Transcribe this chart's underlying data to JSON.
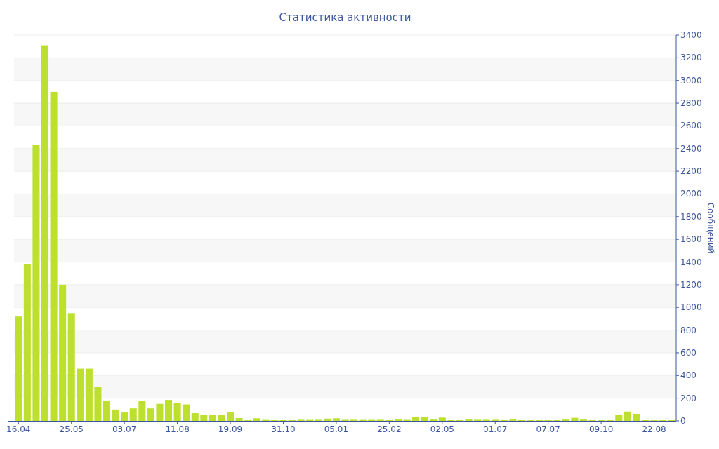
{
  "chart_data": {
    "type": "bar",
    "title": "Статистика активности",
    "ylabel": "Сообщений",
    "categories": [
      "16.04",
      null,
      null,
      null,
      null,
      null,
      "25.05",
      null,
      null,
      null,
      null,
      null,
      "03.07",
      null,
      null,
      null,
      null,
      null,
      "11.08",
      null,
      null,
      null,
      null,
      null,
      "19.09",
      null,
      null,
      null,
      null,
      null,
      "31.10",
      null,
      null,
      null,
      null,
      null,
      "05.01",
      null,
      null,
      null,
      null,
      null,
      "25.02",
      null,
      null,
      null,
      null,
      null,
      "02.05",
      null,
      null,
      null,
      null,
      null,
      "01.07",
      null,
      null,
      null,
      null,
      null,
      "07.07",
      null,
      null,
      null,
      null,
      null,
      "09.10",
      null,
      null,
      null,
      null,
      null,
      "22.08",
      null,
      null
    ],
    "values": [
      920,
      1380,
      2430,
      3310,
      2900,
      1200,
      950,
      460,
      460,
      300,
      180,
      100,
      80,
      110,
      173,
      110,
      150,
      185,
      155,
      145,
      70,
      55,
      55,
      55,
      80,
      25,
      12,
      23,
      15,
      12,
      12,
      10,
      16,
      15,
      16,
      20,
      23,
      16,
      16,
      15,
      15,
      16,
      12,
      18,
      15,
      35,
      37,
      18,
      29,
      12,
      12,
      18,
      16,
      16,
      16,
      12,
      18,
      10,
      6,
      6,
      6,
      12,
      18,
      27,
      18,
      6,
      6,
      6,
      52,
      82,
      62,
      12,
      6,
      6,
      8
    ],
    "color": "#bde02e",
    "ylim": [
      0,
      3400
    ],
    "yticks": [
      0,
      200,
      400,
      600,
      800,
      1000,
      1200,
      1400,
      1600,
      1800,
      2000,
      2200,
      2400,
      2600,
      2800,
      3000,
      3200,
      3400
    ],
    "grid": "y"
  }
}
